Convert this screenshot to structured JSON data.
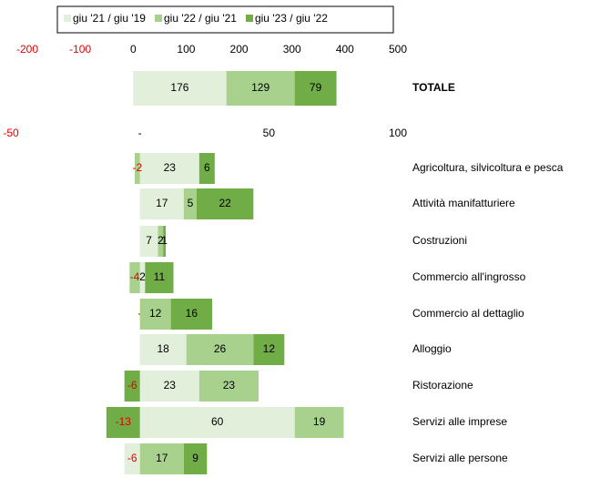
{
  "chart_data": [
    {
      "type": "stacked-barh",
      "categories": [
        "TOTALE"
      ],
      "series": [
        {
          "name": "giu '21 / giu '19",
          "color": "#e2efda",
          "values": [
            176
          ]
        },
        {
          "name": "giu '22 / giu '21",
          "color": "#a9d18e",
          "values": [
            129
          ]
        },
        {
          "name": "giu '23 / giu '22",
          "color": "#70ad47",
          "values": [
            79
          ]
        }
      ],
      "xlim": [
        -200,
        500
      ],
      "xticks": [
        -200,
        -100,
        0,
        100,
        200,
        300,
        400,
        500
      ]
    },
    {
      "type": "stacked-barh",
      "categories": [
        "Agricoltura, silvicoltura e pesca",
        "Attività manifatturiere",
        "Costruzioni",
        "Commercio all'ingrosso",
        "Commercio al dettaglio",
        "Alloggio",
        "Ristorazione",
        "Servizi alle imprese",
        "Servizi alle persone"
      ],
      "series": [
        {
          "color": "#e2efda",
          "values": [
            23,
            17,
            7,
            2,
            0,
            18,
            23,
            60,
            -6
          ],
          "value_labels": [
            "23",
            "17",
            "7",
            "2",
            "-",
            "18",
            "23",
            "60",
            "-6"
          ]
        },
        {
          "color": "#a9d18e",
          "values": [
            -2,
            5,
            2,
            -4,
            12,
            26,
            23,
            19,
            17
          ]
        },
        {
          "color": "#70ad47",
          "values": [
            6,
            22,
            1,
            11,
            16,
            12,
            -6,
            -13,
            9
          ]
        }
      ],
      "xlim": [
        -50,
        100
      ],
      "xticks": [
        -50,
        {
          "value": 0,
          "label": "-"
        },
        50,
        100
      ]
    }
  ]
}
